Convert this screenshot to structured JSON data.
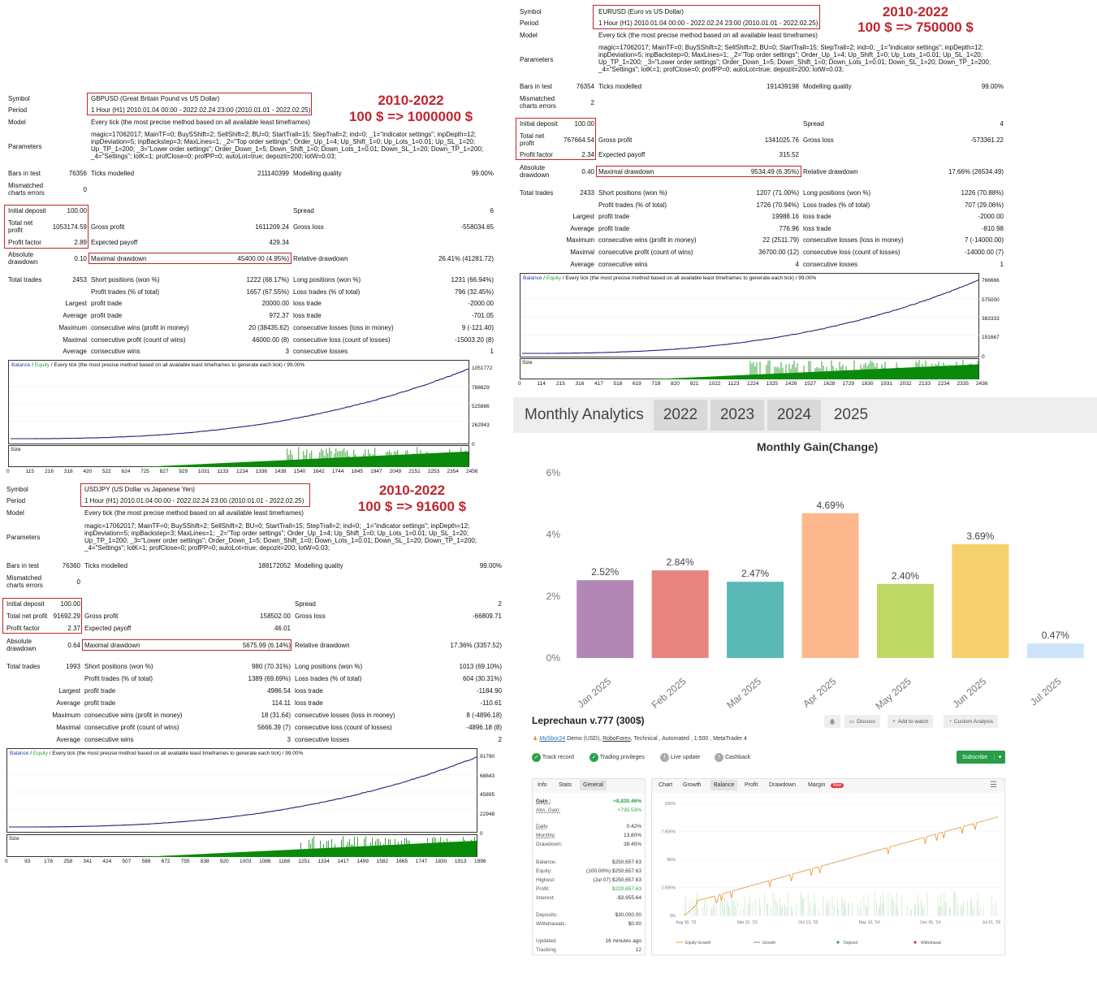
{
  "reports": [
    {
      "id": "gbp",
      "symbol_label": "Symbol",
      "symbol": "GBPUSD (Great Britain Pound vs US Dollar)",
      "period_label": "Period",
      "period": "1 Hour (H1) 2010.01.04 00:00 - 2022.02.24 23:00 (2010.01.01 - 2022.02.25)",
      "model_label": "Model",
      "model": "Every tick (the most precise method based on all available least timeframes)",
      "params_label": "Parameters",
      "params": [
        "magic=17062017; MainTF=0; BuySShift=2; SellShift=2; BU=0; StartTrall=15; StepTrall=2; ind=0; _1=\"indicator settings\"; inpDepth=12;",
        "inpDeviation=5; inpBackstep=3; MaxLines=1; _2=\"Top order settings\"; Order_Up_1=4; Up_Shift_1=0; Up_Lots_1=0.01; Up_SL_1=20;",
        "Up_TP_1=200; _3=\"Lower order settings\"; Order_Down_1=5; Down_Shift_1=0; Down_Lots_1=0.01; Down_SL_1=20; Down_TP_1=200;",
        "_4=\"Settings\"; lotK=1; profClose=0; profPP=0; autoLot=true; depozit=200; lotW=0.03;"
      ],
      "bars_label": "Bars in test",
      "bars": "76356",
      "ticks_label": "Ticks modelled",
      "ticks": "211140399",
      "mq_label": "Modelling quality",
      "mq": "99.00%",
      "mce_label": "Mismatched charts errors",
      "mce": "0",
      "deposit_label": "Initial deposit",
      "deposit": "100.00",
      "spread_label": "Spread",
      "spread": "6",
      "tnp_label": "Total net profit",
      "tnp": "1053174.59",
      "gp_label": "Gross profit",
      "gp": "1611209.24",
      "gl_label": "Gross loss",
      "gl": "-558034.65",
      "pf_label": "Profit factor",
      "pf": "2.89",
      "ep_label": "Expected payoff",
      "ep": "429.34",
      "ad_label": "Absolute drawdown",
      "ad": "0.10",
      "md_label": "Maximal drawdown",
      "md": "45400.00 (4.95%)",
      "rd_label": "Relative drawdown",
      "rd": "26.41% (41281.72)",
      "tt_label": "Total trades",
      "tt": "2453",
      "stats": [
        [
          "Short positions (won %)",
          "1222 (68.17%)",
          "Long positions (won %)",
          "1231 (66.94%)"
        ],
        [
          "Profit trades (% of total)",
          "1657 (67.55%)",
          "Loss trades (% of total)",
          "796 (32.45%)"
        ],
        [
          "profit trade",
          "20000.00",
          "loss trade",
          "-2000.00"
        ],
        [
          "profit trade",
          "972.37",
          "loss trade",
          "-701.05"
        ],
        [
          "consecutive wins (profit in money)",
          "20 (38435.62)",
          "consecutive losses (loss in money)",
          "9 (-121.40)"
        ],
        [
          "consecutive profit (count of wins)",
          "46000.00 (8)",
          "consecutive loss (count of losses)",
          "-15003.20 (8)"
        ],
        [
          "consecutive wins",
          "3",
          "consecutive losses",
          "1"
        ]
      ],
      "stat_prefix": [
        "",
        "",
        "Largest",
        "Average",
        "Maximum",
        "Maximal",
        "Average"
      ],
      "caption_balance": "Balance",
      "caption_sep": " / ",
      "caption_equity": "Equity",
      "caption_rest": " / Every tick (the most precise method based on all available least timeframes to generate each tick) / 99.00%",
      "yticks": [
        "1051772",
        "788829",
        "525886",
        "262943",
        "0"
      ],
      "size_label": "Size",
      "xticks": [
        "0",
        "115",
        "216",
        "318",
        "420",
        "522",
        "624",
        "725",
        "827",
        "929",
        "1031",
        "1133",
        "1234",
        "1336",
        "1438",
        "1540",
        "1642",
        "1744",
        "1845",
        "1947",
        "2049",
        "2151",
        "2253",
        "2354",
        "2456"
      ],
      "promo_years": "2010-2022",
      "promo_result": "100 $ => 1000000 $"
    },
    {
      "id": "eur",
      "symbol_label": "Symbol",
      "symbol": "EURUSD (Euro vs US Dollar)",
      "period_label": "Period",
      "period": "1 Hour (H1) 2010.01.04 00:00 - 2022.02.24 23:00 (2010.01.01 - 2022.02.25)",
      "model_label": "Model",
      "model": "Every tick (the most precise method based on all available least timeframes)",
      "params_label": "Parameters",
      "params": [
        "magic=17062017; MainTF=0; BuySShift=2; SellShift=2; BU=0; StartTrall=15; StepTrall=2; ind=0; _1=\"indicator settings\"; inpDepth=12;",
        "inpDeviation=5; inpBackstep=0; MaxLines=1; _2=\"Top order settings\"; Order_Up_1=4; Up_Shift_1=0; Up_Lots_1=0.01; Up_SL_1=20;",
        "Up_TP_1=200; _3=\"Lower order settings\"; Order_Down_1=5; Down_Shift_1=0; Down_Lots_1=0.01; Down_SL_1=20; Down_TP_1=200;",
        "_4=\"Settings\"; lotK=1; profClose=0; profPP=0; autoLot=true; depozit=200; lotW=0.03;"
      ],
      "bars_label": "Bars in test",
      "bars": "76354",
      "ticks_label": "Ticks modelled",
      "ticks": "191439198",
      "mq_label": "Modelling quality",
      "mq": "99.00%",
      "mce_label": "Mismatched charts errors",
      "mce": "2",
      "deposit_label": "Initial deposit",
      "deposit": "100.00",
      "spread_label": "Spread",
      "spread": "4",
      "tnp_label": "Total net profit",
      "tnp": "767664.54",
      "gp_label": "Gross profit",
      "gp": "1341025.76",
      "gl_label": "Gross loss",
      "gl": "-573361.22",
      "pf_label": "Profit factor",
      "pf": "2.34",
      "ep_label": "Expected payoff",
      "ep": "315.52",
      "ad_label": "Absolute drawdown",
      "ad": "0.40",
      "md_label": "Maximal drawdown",
      "md": "9534.49 (6.35%)",
      "rd_label": "Relative drawdown",
      "rd": "17.66% (26534.49)",
      "tt_label": "Total trades",
      "tt": "2433",
      "stats": [
        [
          "Short positions (won %)",
          "1207 (71.00%)",
          "Long positions (won %)",
          "1226 (70.88%)"
        ],
        [
          "Profit trades (% of total)",
          "1726 (70.94%)",
          "Loss trades (% of total)",
          "707 (29.06%)"
        ],
        [
          "profit trade",
          "19988.16",
          "loss trade",
          "-2000.00"
        ],
        [
          "profit trade",
          "776.96",
          "loss trade",
          "-810.98"
        ],
        [
          "consecutive wins (profit in money)",
          "22 (2511.79)",
          "consecutive losses (loss in money)",
          "7 (-14000.00)"
        ],
        [
          "consecutive profit (count of wins)",
          "36700.00 (12)",
          "consecutive loss (count of losses)",
          "-14000.00 (7)"
        ],
        [
          "consecutive wins",
          "4",
          "consecutive losses",
          "1"
        ]
      ],
      "stat_prefix": [
        "",
        "",
        "Largest",
        "Average",
        "Maximum",
        "Maximal",
        "Average"
      ],
      "caption_balance": "Balance",
      "caption_sep": " / ",
      "caption_equity": "Equity",
      "caption_rest": " / Every tick (the most precise method based on all available least timeframes to generate each tick) / 99.00%",
      "yticks": [
        "766666",
        "575000",
        "383333",
        "191667",
        "0"
      ],
      "size_label": "Size",
      "xticks": [
        "0",
        "114",
        "215",
        "316",
        "417",
        "518",
        "619",
        "719",
        "820",
        "921",
        "1022",
        "1123",
        "1224",
        "1325",
        "1426",
        "1527",
        "1628",
        "1729",
        "1830",
        "1931",
        "2032",
        "2133",
        "2234",
        "2335",
        "2436"
      ],
      "promo_years": "2010-2022",
      "promo_result": "100 $ => 750000 $"
    },
    {
      "id": "jpy",
      "symbol_label": "Symbol",
      "symbol": "USDJPY (US Dollar vs Japanese Yen)",
      "period_label": "Period",
      "period": "1 Hour (H1) 2010.01.04 00:00 - 2022.02.24 23:00 (2010.01.01 - 2022.02.25)",
      "model_label": "Model",
      "model": "Every tick (the most precise method based on all available least timeframes)",
      "params_label": "Parameters",
      "params": [
        "magic=17062017; MainTF=0; BuySShift=2; SellShift=2; BU=0; StartTrall=15; StepTrall=2; ind=0; _1=\"indicator settings\"; inpDepth=12;",
        "inpDeviation=5; inpBackstep=3; MaxLines=1; _2=\"Top order settings\"; Order_Up_1=4; Up_Shift_1=0; Up_Lots_1=0.01; Up_SL_1=20;",
        "Up_TP_1=200; _3=\"Lower order settings\"; Order_Down_1=5; Down_Shift_1=0; Down_Lots_1=0.01; Down_SL_1=20; Down_TP_1=200;",
        "_4=\"Settings\"; lotK=1; profClose=0; profPP=0; autoLot=true; depozit=200; lotW=0.03;"
      ],
      "bars_label": "Bars in test",
      "bars": "76360",
      "ticks_label": "Ticks modelled",
      "ticks": "188172052",
      "mq_label": "Modelling quality",
      "mq": "99.00%",
      "mce_label": "Mismatched charts errors",
      "mce": "0",
      "deposit_label": "Initial deposit",
      "deposit": "100.00",
      "spread_label": "Spread",
      "spread": "2",
      "tnp_label": "Total net profit",
      "tnp": "91692.29",
      "gp_label": "Gross profit",
      "gp": "158502.00",
      "gl_label": "Gross loss",
      "gl": "-66809.71",
      "pf_label": "Profit factor",
      "pf": "2.37",
      "ep_label": "Expected payoff",
      "ep": "46.01",
      "ad_label": "Absolute drawdown",
      "ad": "0.64",
      "md_label": "Maximal drawdown",
      "md": "5675.99 (6.14%)",
      "rd_label": "Relative drawdown",
      "rd": "17.36% (3357.52)",
      "tt_label": "Total trades",
      "tt": "1993",
      "stats": [
        [
          "Short positions (won %)",
          "980 (70.31%)",
          "Long positions (won %)",
          "1013 (69.10%)"
        ],
        [
          "Profit trades (% of total)",
          "1389 (69.69%)",
          "Loss trades (% of total)",
          "604 (30.31%)"
        ],
        [
          "profit trade",
          "4986.54",
          "loss trade",
          "-1184.90"
        ],
        [
          "profit trade",
          "114.11",
          "loss trade",
          "-110.61"
        ],
        [
          "consecutive wins (profit in money)",
          "18 (31.64)",
          "consecutive losses (loss in money)",
          "8 (-4896.18)"
        ],
        [
          "consecutive profit (count of wins)",
          "5666.39 (7)",
          "consecutive loss (count of losses)",
          "-4896.18 (8)"
        ],
        [
          "consecutive wins",
          "3",
          "consecutive losses",
          "2"
        ]
      ],
      "stat_prefix": [
        "",
        "",
        "Largest",
        "Average",
        "Maximum",
        "Maximal",
        "Average"
      ],
      "caption_balance": "Balance",
      "caption_sep": " / ",
      "caption_equity": "Equity",
      "caption_rest": " / Every tick (the most precise method based on all available least timeframes to generate each tick) / 99.00%",
      "yticks": [
        "91790",
        "68843",
        "45895",
        "22948",
        "0"
      ],
      "size_label": "Size",
      "xticks": [
        "0",
        "93",
        "176",
        "258",
        "341",
        "424",
        "507",
        "589",
        "672",
        "755",
        "838",
        "920",
        "1003",
        "1086",
        "1168",
        "1251",
        "1334",
        "1417",
        "1499",
        "1582",
        "1665",
        "1747",
        "1830",
        "1913",
        "1996"
      ],
      "promo_years": "2010-2022",
      "promo_result": "100 $ => 91600 $"
    }
  ],
  "monthly": {
    "title": "Monthly Analytics",
    "tabs": [
      "2022",
      "2023",
      "2024",
      "2025"
    ],
    "chart_title": "Monthly Gain(Change)",
    "chart_data": {
      "type": "bar",
      "title": "Monthly Gain(Change)",
      "categories": [
        "Jan 2025",
        "Feb 2025",
        "Mar 2025",
        "Apr 2025",
        "May 2025",
        "Jun 2025",
        "Jul 2025"
      ],
      "values": [
        2.52,
        2.84,
        2.47,
        4.69,
        2.4,
        3.69,
        0.47
      ],
      "labels": [
        "2.52%",
        "2.84%",
        "2.47%",
        "4.69%",
        "2.40%",
        "3.69%",
        "0.47%"
      ],
      "colors": [
        "#b286b5",
        "#e78680",
        "#5bb9b5",
        "#fdb98d",
        "#bfd764",
        "#f5d06c",
        "#cde4f8"
      ],
      "yticks": [
        "6%",
        "4%",
        "2%",
        "0%"
      ],
      "ylim": [
        0,
        6
      ]
    }
  },
  "fx": {
    "title": "Leprechaun v.777 (300$)",
    "bell": "bell-icon",
    "actions": [
      "Discuss",
      "Add to watch",
      "Custom Analysis"
    ],
    "author": "MySbor24",
    "account": "Demo (USD),",
    "broker": "RoboForex",
    "meta": ", Technical , Automated , 1:500 , MetaTrader 4",
    "badges": [
      "Track record",
      "Trading privileges",
      "Live update",
      "Cashback"
    ],
    "subscribe": "Subscribe",
    "tabs_left": [
      "Info",
      "Stats",
      "General"
    ],
    "rows": [
      [
        "Gain :",
        "+8,820.46%"
      ],
      [
        "Abs. Gain:",
        "+735.53%"
      ],
      [
        "Daily",
        "0.42%"
      ],
      [
        "Monthly:",
        "13.80%"
      ],
      [
        "Drawdown:",
        "38.45%"
      ],
      [
        "Balance:",
        "$250,657.63"
      ],
      [
        "Equity:",
        "(100.00%) $250,657.63"
      ],
      [
        "Highest:",
        "(Jul 07) $250,657.63"
      ],
      [
        "Profit:",
        "$220,657.63"
      ],
      [
        "Interest:",
        "-$3,955.64"
      ],
      [
        "Deposits:",
        "$30,000.00"
      ],
      [
        "Withdrawals:",
        "$0.00"
      ],
      [
        "Updated",
        "16 minutes ago"
      ],
      [
        "Tracking",
        "12"
      ]
    ],
    "tabs_right": [
      "Chart",
      "Growth",
      "Balance",
      "Profit",
      "Drawdown",
      "Margin"
    ],
    "new_badge": "New",
    "chart_data": {
      "type": "line",
      "yticks": [
        "10K%",
        "7.50K%",
        "5K%",
        "2.50K%",
        "0%"
      ],
      "xticks": [
        "Aug 30, '22",
        "Mar 22, '23",
        "Oct 13, '23",
        "May 10, '24",
        "Dec 05, '24",
        "Jul 01, '25"
      ],
      "legend": [
        "Equity Growth",
        "Growth",
        "Deposit",
        "Withdrawal"
      ]
    }
  }
}
